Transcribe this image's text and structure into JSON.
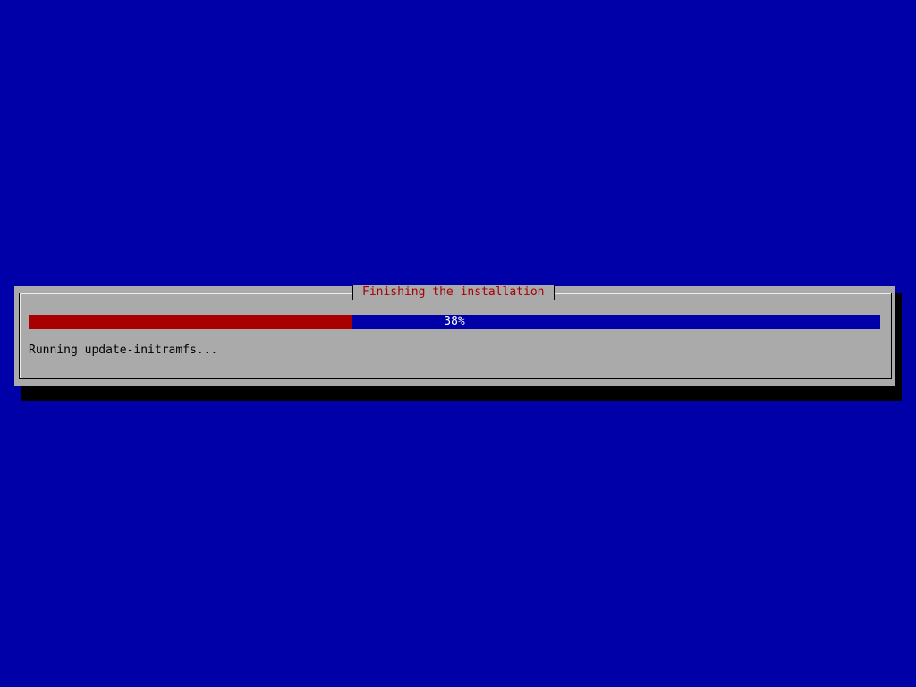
{
  "dialog": {
    "title": "Finishing the installation",
    "progress_percent": 38,
    "progress_label": "38%",
    "status": "Running update-initramfs..."
  },
  "colors": {
    "background": "#0000a8",
    "dialog": "#aaaaaa",
    "progress_fill": "#a80000",
    "title": "#a80000"
  }
}
